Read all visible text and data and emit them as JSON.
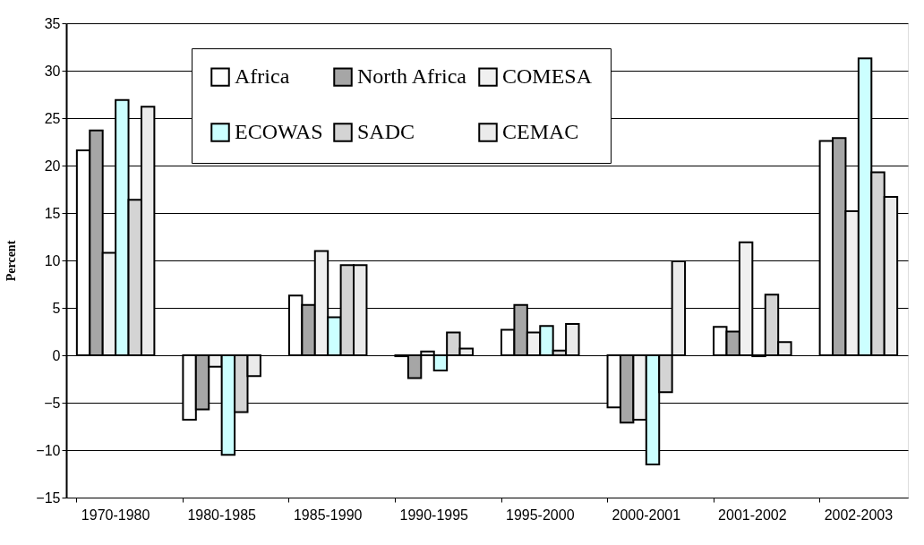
{
  "chart_data": {
    "type": "bar",
    "ylabel": "Percent",
    "categories": [
      "1970-1980",
      "1980-1985",
      "1985-1990",
      "1990-1995",
      "1995-2000",
      "2000-2001",
      "2001-2002",
      "2002-2003"
    ],
    "series": [
      {
        "name": "Africa",
        "color": "#ffffff",
        "values": [
          21.6,
          -6.8,
          6.3,
          -0.1,
          2.7,
          -5.5,
          3.0,
          22.6
        ]
      },
      {
        "name": "North Africa",
        "color": "#a6a6a6",
        "values": [
          23.7,
          -5.7,
          5.3,
          -2.4,
          5.3,
          -7.1,
          2.5,
          22.9
        ]
      },
      {
        "name": "COMESA",
        "color": "#f0f0f0",
        "values": [
          10.8,
          -1.2,
          11.0,
          0.4,
          2.4,
          -6.8,
          11.9,
          15.2
        ]
      },
      {
        "name": "ECOWAS",
        "color": "#ccffff",
        "values": [
          26.9,
          -10.5,
          4.0,
          -1.6,
          3.1,
          -11.5,
          -0.1,
          31.3
        ]
      },
      {
        "name": "SADC",
        "color": "#d4d4d4",
        "values": [
          16.4,
          -6.0,
          9.5,
          2.4,
          0.5,
          -3.9,
          6.4,
          19.3
        ]
      },
      {
        "name": "CEMAC",
        "color": "#ebebeb",
        "values": [
          26.2,
          -2.2,
          9.5,
          0.7,
          3.3,
          9.9,
          1.4,
          16.7
        ]
      }
    ],
    "ylim": [
      -15,
      35
    ],
    "yticks": [
      -15,
      -10,
      -5,
      0,
      5,
      10,
      15,
      20,
      25,
      30,
      35
    ],
    "grid": "y",
    "legend": "top"
  }
}
